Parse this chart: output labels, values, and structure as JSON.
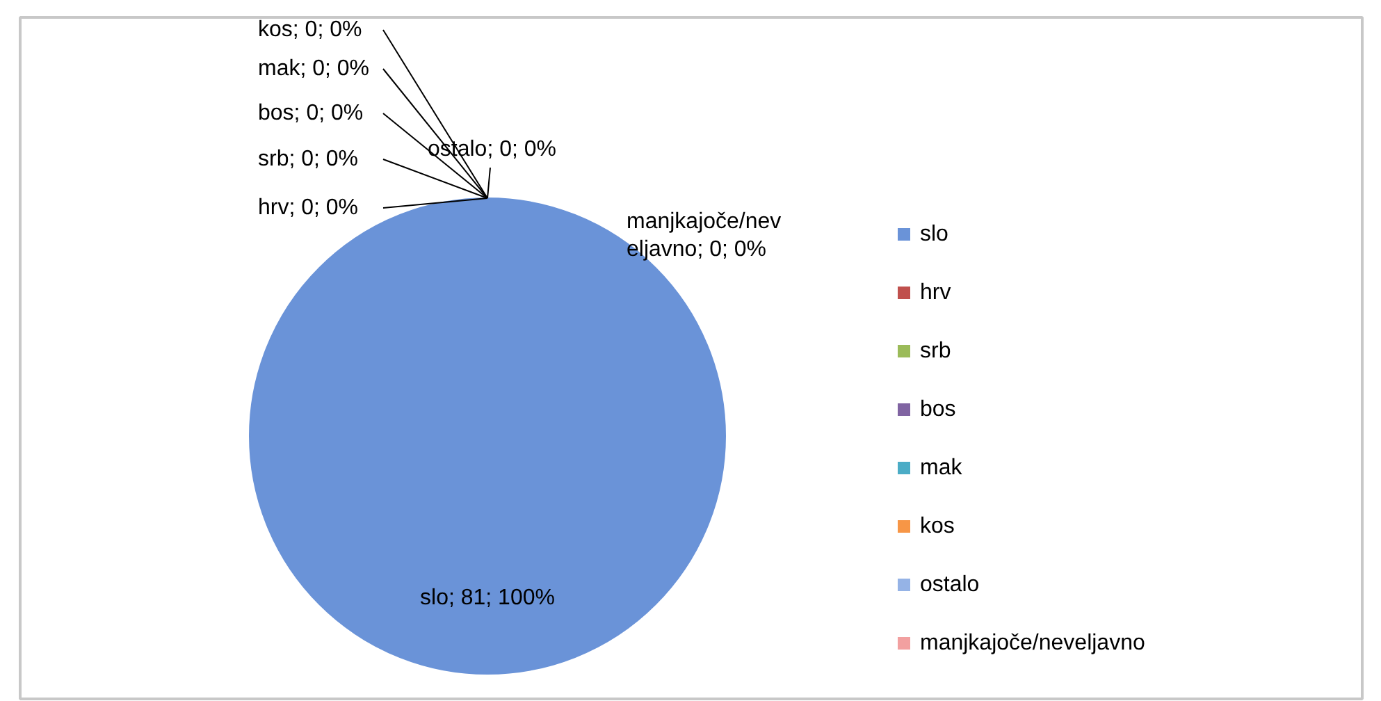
{
  "chart_data": {
    "type": "pie",
    "categories": [
      "slo",
      "hrv",
      "srb",
      "bos",
      "mak",
      "kos",
      "ostalo",
      "manjkajoče/neveljavno"
    ],
    "values": [
      81,
      0,
      0,
      0,
      0,
      0,
      0,
      0
    ],
    "colors": [
      "#6a93d8",
      "#c0504d",
      "#9bbb59",
      "#8064a2",
      "#4bacc6",
      "#f79646",
      "#95b3e6",
      "#f2a0a0"
    ],
    "value_labels": [
      "slo; 81; 100%",
      "hrv; 0; 0%",
      "srb; 0; 0%",
      "bos; 0; 0%",
      "mak; 0; 0%",
      "kos; 0; 0%",
      "ostalo; 0; 0%",
      "manjkajoče/neveljavno; 0; 0%"
    ],
    "legend": "right"
  }
}
